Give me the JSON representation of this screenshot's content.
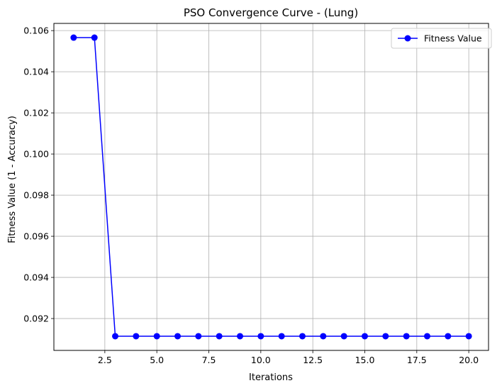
{
  "chart_data": {
    "type": "line",
    "title": "PSO Convergence Curve - (Lung)",
    "xlabel": "Iterations",
    "ylabel": "Fitness Value (1 - Accuracy)",
    "xlim": [
      0.05,
      20.95
    ],
    "ylim": [
      0.09045,
      0.10635
    ],
    "xticks": [
      2.5,
      5.0,
      7.5,
      10.0,
      12.5,
      15.0,
      17.5,
      20.0
    ],
    "xtick_labels": [
      "2.5",
      "5.0",
      "7.5",
      "10.0",
      "12.5",
      "15.0",
      "17.5",
      "20.0"
    ],
    "yticks": [
      0.092,
      0.094,
      0.096,
      0.098,
      0.1,
      0.102,
      0.104,
      0.106
    ],
    "ytick_labels": [
      "0.092",
      "0.094",
      "0.096",
      "0.098",
      "0.100",
      "0.102",
      "0.104",
      "0.106"
    ],
    "grid": true,
    "legend_position": "top-right",
    "series": [
      {
        "name": "Fitness Value",
        "color": "#0000ff",
        "marker": "circle",
        "x": [
          1,
          2,
          3,
          4,
          5,
          6,
          7,
          8,
          9,
          10,
          11,
          12,
          13,
          14,
          15,
          16,
          17,
          18,
          19,
          20
        ],
        "values": [
          0.10566,
          0.10566,
          0.09114,
          0.09114,
          0.09114,
          0.09114,
          0.09114,
          0.09114,
          0.09114,
          0.09114,
          0.09114,
          0.09114,
          0.09114,
          0.09114,
          0.09114,
          0.09114,
          0.09114,
          0.09114,
          0.09114,
          0.09114
        ]
      }
    ]
  }
}
